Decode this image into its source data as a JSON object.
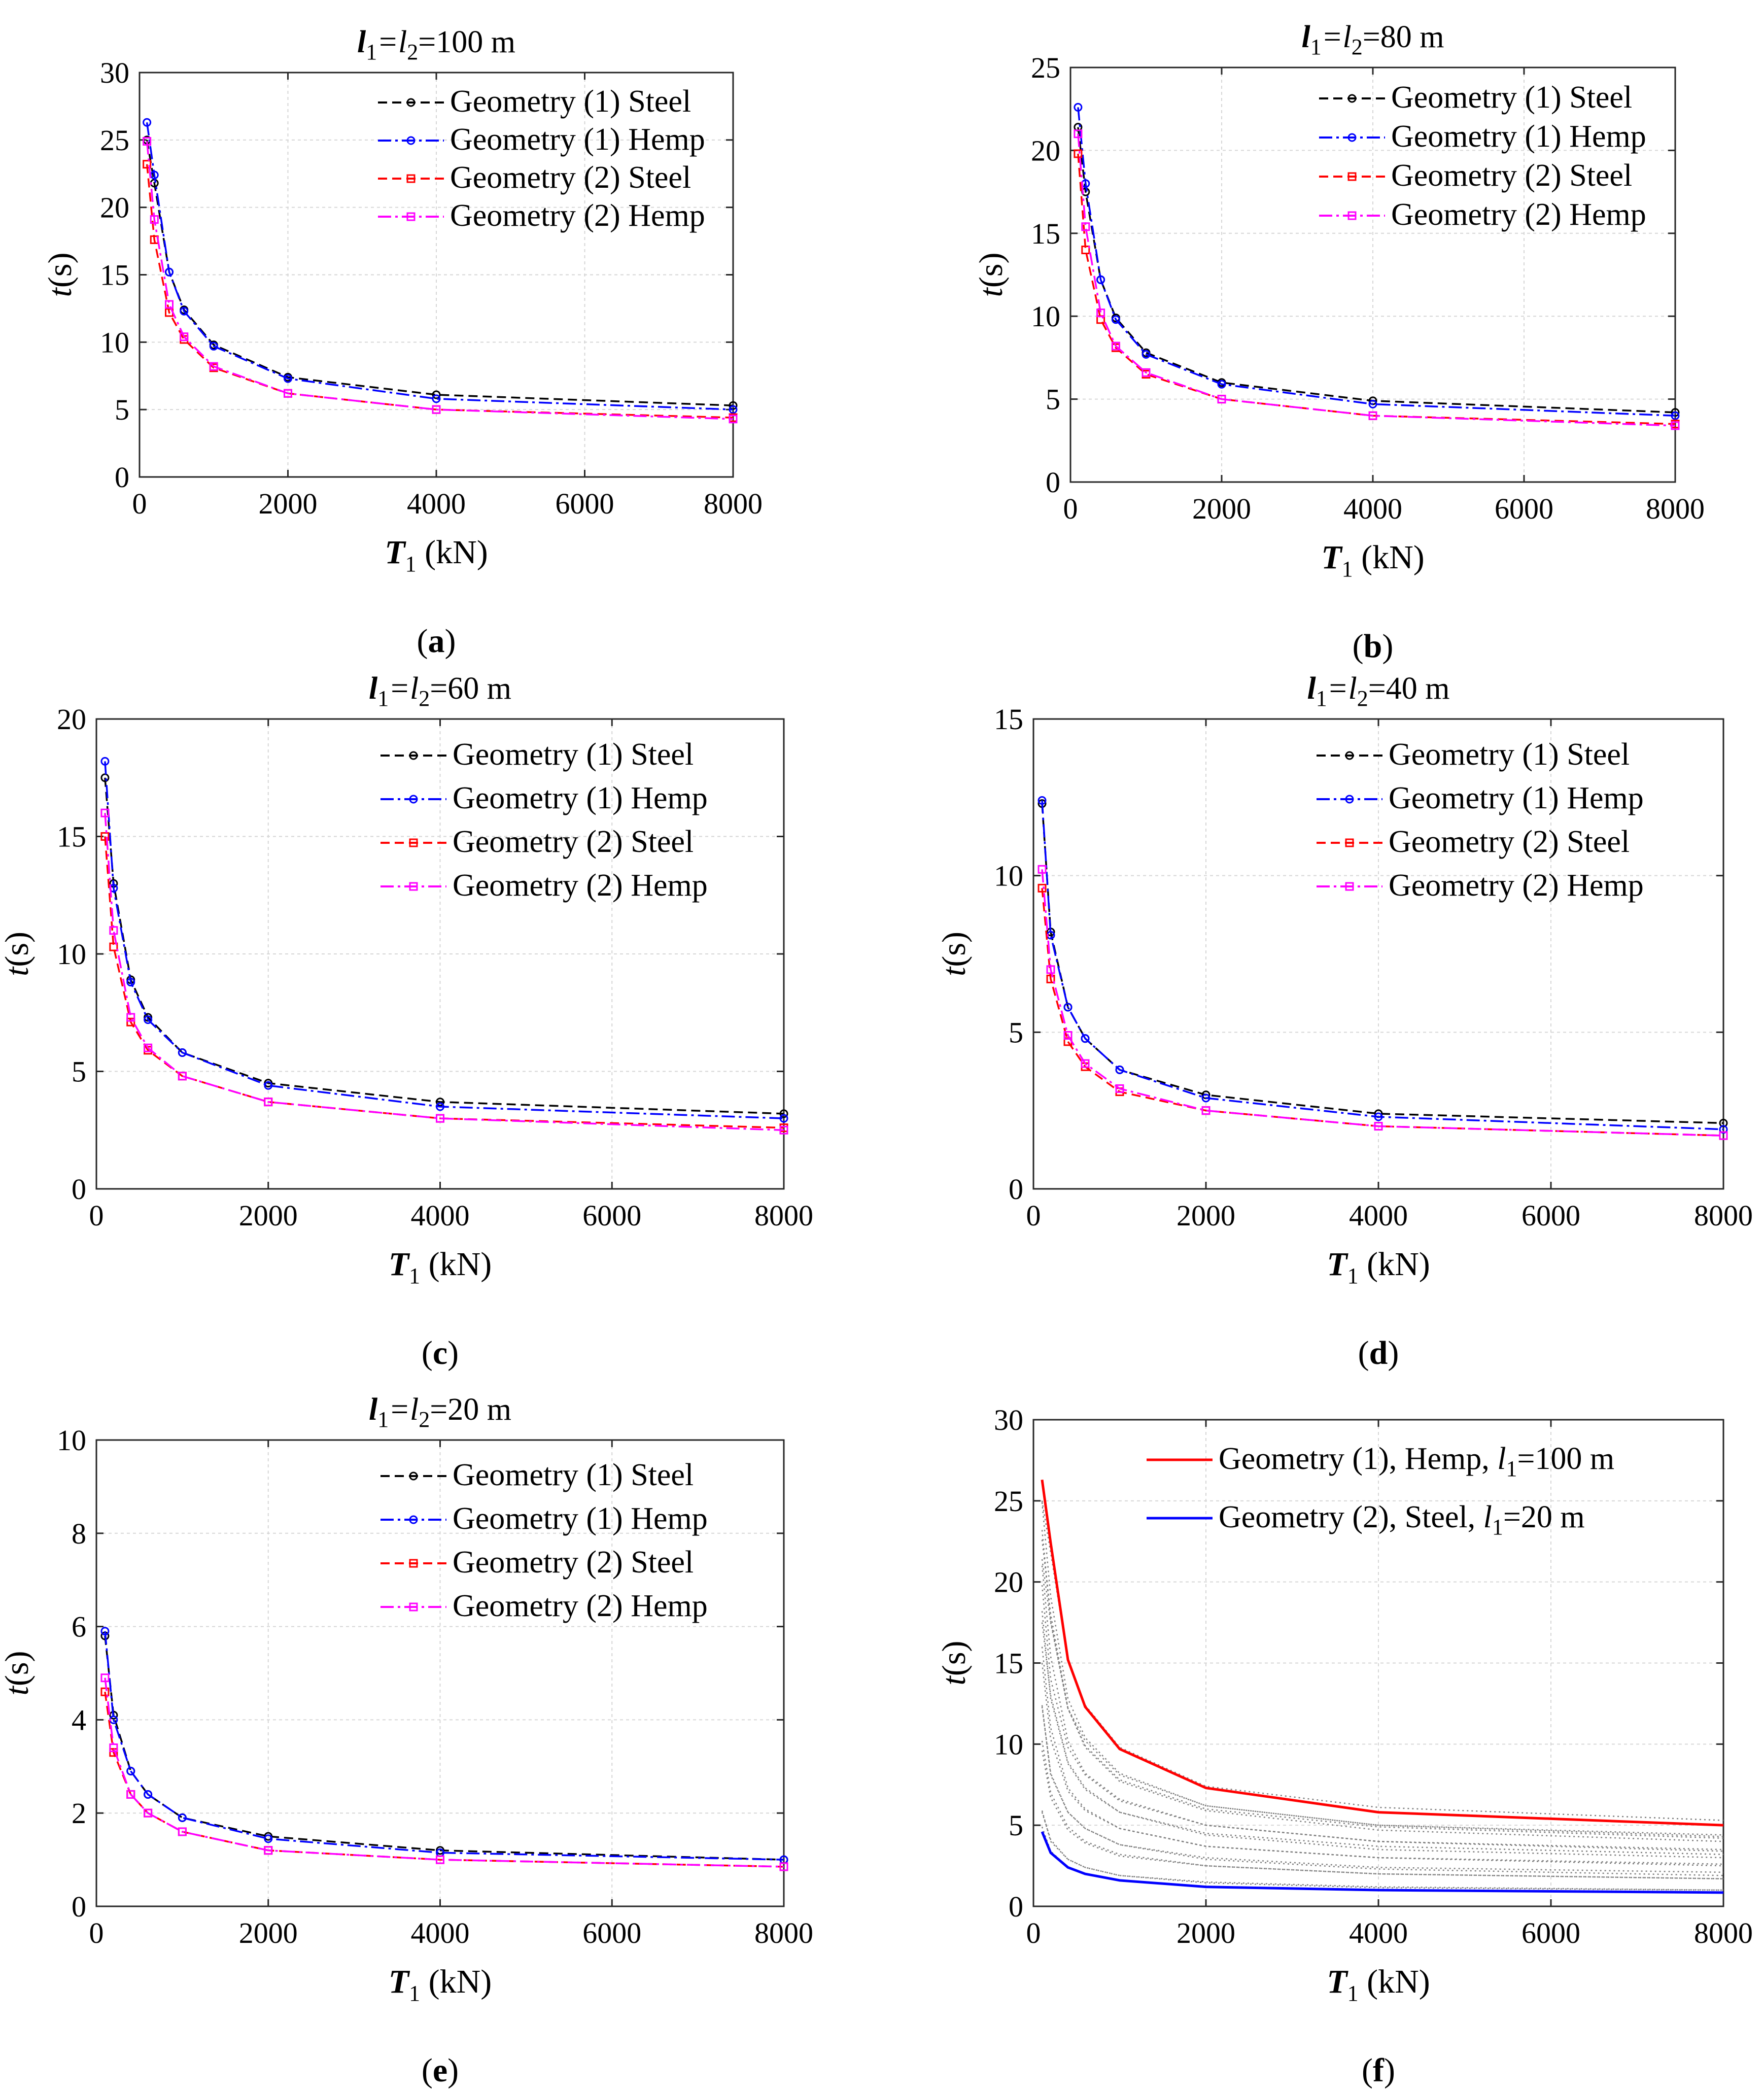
{
  "figure": {
    "x_tick_labels": [
      "0",
      "2000",
      "4000",
      "6000",
      "8000"
    ],
    "xlabel_main": "T",
    "xlabel_sub": "1",
    "xlabel_unit": " (kN)",
    "ylabel_main": "t",
    "ylabel_unit": "(s)"
  },
  "chart_data": [
    {
      "panel": "a",
      "type": "line",
      "title_l": "l",
      "title_s1": "1",
      "title_eq": "=l",
      "title_s2": "2",
      "title_value": "=100 m",
      "caption_open": "(",
      "caption_letter": "a",
      "caption_close": ")",
      "xlim": [
        0,
        8000
      ],
      "ylim": [
        0,
        30
      ],
      "yticks": [
        0,
        5,
        10,
        15,
        20,
        25,
        30
      ],
      "y_tick_labels": [
        "0",
        "5",
        "10",
        "15",
        "20",
        "25",
        "30"
      ],
      "x": [
        100,
        200,
        400,
        600,
        1000,
        2000,
        4000,
        8000
      ],
      "series": [
        {
          "name": "Geometry (1) Steel",
          "color": "#000000",
          "dash": "18 10",
          "marker": "circle",
          "values": [
            25.0,
            21.8,
            15.2,
            12.4,
            9.8,
            7.4,
            6.1,
            5.3
          ]
        },
        {
          "name": "Geometry (1) Hemp",
          "color": "#0000ff",
          "dash": "26 8 5 8",
          "marker": "circle",
          "values": [
            26.3,
            22.4,
            15.2,
            12.3,
            9.7,
            7.3,
            5.8,
            5.0
          ]
        },
        {
          "name": "Geometry (2) Steel",
          "color": "#ff0000",
          "dash": "18 10",
          "marker": "square",
          "values": [
            23.2,
            17.6,
            12.2,
            10.2,
            8.1,
            6.2,
            5.0,
            4.4
          ]
        },
        {
          "name": "Geometry (2) Hemp",
          "color": "#ff00ff",
          "dash": "26 8 5 8",
          "marker": "square",
          "values": [
            24.9,
            19.1,
            12.8,
            10.4,
            8.2,
            6.2,
            5.0,
            4.3
          ]
        }
      ]
    },
    {
      "panel": "b",
      "type": "line",
      "title_l": "l",
      "title_s1": "1",
      "title_eq": "=l",
      "title_s2": "2",
      "title_value": "=80 m",
      "caption_open": "(",
      "caption_letter": "b",
      "caption_close": ")",
      "xlim": [
        0,
        8000
      ],
      "ylim": [
        0,
        25
      ],
      "yticks": [
        0,
        5,
        10,
        15,
        20,
        25
      ],
      "y_tick_labels": [
        "0",
        "5",
        "10",
        "15",
        "20",
        "25"
      ],
      "x": [
        100,
        200,
        400,
        600,
        1000,
        2000,
        4000,
        8000
      ],
      "series": [
        {
          "name": "Geometry (1) Steel",
          "color": "#000000",
          "dash": "18 10",
          "marker": "circle",
          "values": [
            21.4,
            17.5,
            12.2,
            9.9,
            7.8,
            6.0,
            4.9,
            4.2
          ]
        },
        {
          "name": "Geometry (1) Hemp",
          "color": "#0000ff",
          "dash": "26 8 5 8",
          "marker": "circle",
          "values": [
            22.6,
            18.0,
            12.2,
            9.8,
            7.7,
            5.9,
            4.7,
            4.0
          ]
        },
        {
          "name": "Geometry (2) Steel",
          "color": "#ff0000",
          "dash": "18 10",
          "marker": "square",
          "values": [
            19.8,
            14.0,
            9.8,
            8.1,
            6.5,
            5.0,
            4.0,
            3.5
          ]
        },
        {
          "name": "Geometry (2) Hemp",
          "color": "#ff00ff",
          "dash": "26 8 5 8",
          "marker": "square",
          "values": [
            21.0,
            15.4,
            10.2,
            8.2,
            6.6,
            5.0,
            4.0,
            3.4
          ]
        }
      ]
    },
    {
      "panel": "c",
      "type": "line",
      "title_l": "l",
      "title_s1": "1",
      "title_eq": "=l",
      "title_s2": "2",
      "title_value": "=60 m",
      "caption_open": "(",
      "caption_letter": "c",
      "caption_close": ")",
      "xlim": [
        0,
        8000
      ],
      "ylim": [
        0,
        20
      ],
      "yticks": [
        0,
        5,
        10,
        15,
        20
      ],
      "y_tick_labels": [
        "0",
        "5",
        "10",
        "15",
        "20"
      ],
      "x": [
        100,
        200,
        400,
        600,
        1000,
        2000,
        4000,
        8000
      ],
      "series": [
        {
          "name": "Geometry (1) Steel",
          "color": "#000000",
          "dash": "18 10",
          "marker": "circle",
          "values": [
            17.5,
            13.0,
            8.9,
            7.3,
            5.8,
            4.5,
            3.7,
            3.2
          ]
        },
        {
          "name": "Geometry (1) Hemp",
          "color": "#0000ff",
          "dash": "26 8 5 8",
          "marker": "circle",
          "values": [
            18.2,
            12.8,
            8.8,
            7.2,
            5.8,
            4.4,
            3.5,
            3.0
          ]
        },
        {
          "name": "Geometry (2) Steel",
          "color": "#ff0000",
          "dash": "18 10",
          "marker": "square",
          "values": [
            15.0,
            10.3,
            7.1,
            5.9,
            4.8,
            3.7,
            3.0,
            2.6
          ]
        },
        {
          "name": "Geometry (2) Hemp",
          "color": "#ff00ff",
          "dash": "26 8 5 8",
          "marker": "square",
          "values": [
            16.0,
            11.0,
            7.3,
            6.0,
            4.8,
            3.7,
            3.0,
            2.5
          ]
        }
      ]
    },
    {
      "panel": "d",
      "type": "line",
      "title_l": "l",
      "title_s1": "1",
      "title_eq": "=l",
      "title_s2": "2",
      "title_value": "=40 m",
      "caption_open": "(",
      "caption_letter": "d",
      "caption_close": ")",
      "xlim": [
        0,
        8000
      ],
      "ylim": [
        0,
        15
      ],
      "yticks": [
        0,
        5,
        10,
        15
      ],
      "y_tick_labels": [
        "0",
        "5",
        "10",
        "15"
      ],
      "x": [
        100,
        200,
        400,
        600,
        1000,
        2000,
        4000,
        8000
      ],
      "series": [
        {
          "name": "Geometry (1) Steel",
          "color": "#000000",
          "dash": "18 10",
          "marker": "circle",
          "values": [
            12.3,
            8.2,
            5.8,
            4.8,
            3.8,
            3.0,
            2.4,
            2.1
          ]
        },
        {
          "name": "Geometry (1) Hemp",
          "color": "#0000ff",
          "dash": "26 8 5 8",
          "marker": "circle",
          "values": [
            12.4,
            8.1,
            5.8,
            4.8,
            3.8,
            2.9,
            2.3,
            1.9
          ]
        },
        {
          "name": "Geometry (2) Steel",
          "color": "#ff0000",
          "dash": "18 10",
          "marker": "square",
          "values": [
            9.6,
            6.7,
            4.7,
            3.9,
            3.1,
            2.5,
            2.0,
            1.7
          ]
        },
        {
          "name": "Geometry (2) Hemp",
          "color": "#ff00ff",
          "dash": "26 8 5 8",
          "marker": "square",
          "values": [
            10.2,
            7.0,
            4.9,
            4.0,
            3.2,
            2.5,
            2.0,
            1.7
          ]
        }
      ]
    },
    {
      "panel": "e",
      "type": "line",
      "title_l": "l",
      "title_s1": "1",
      "title_eq": "=l",
      "title_s2": "2",
      "title_value": "=20 m",
      "caption_open": "(",
      "caption_letter": "e",
      "caption_close": ")",
      "xlim": [
        0,
        8000
      ],
      "ylim": [
        0,
        10
      ],
      "yticks": [
        0,
        2,
        4,
        6,
        8,
        10
      ],
      "y_tick_labels": [
        "0",
        "2",
        "4",
        "6",
        "8",
        "10"
      ],
      "x": [
        100,
        200,
        400,
        600,
        1000,
        2000,
        4000,
        8000
      ],
      "series": [
        {
          "name": "Geometry (1) Steel",
          "color": "#000000",
          "dash": "18 10",
          "marker": "circle",
          "values": [
            5.8,
            4.1,
            2.9,
            2.4,
            1.9,
            1.5,
            1.2,
            1.0
          ]
        },
        {
          "name": "Geometry (1) Hemp",
          "color": "#0000ff",
          "dash": "26 8 5 8",
          "marker": "circle",
          "values": [
            5.9,
            4.0,
            2.9,
            2.4,
            1.9,
            1.45,
            1.15,
            1.0
          ]
        },
        {
          "name": "Geometry (2) Steel",
          "color": "#ff0000",
          "dash": "18 10",
          "marker": "square",
          "values": [
            4.6,
            3.3,
            2.4,
            2.0,
            1.6,
            1.2,
            1.0,
            0.85
          ]
        },
        {
          "name": "Geometry (2) Hemp",
          "color": "#ff00ff",
          "dash": "26 8 5 8",
          "marker": "square",
          "values": [
            4.9,
            3.4,
            2.4,
            2.0,
            1.6,
            1.2,
            1.0,
            0.85
          ]
        }
      ]
    },
    {
      "panel": "f",
      "type": "line",
      "caption_open": "(",
      "caption_letter": "f",
      "caption_close": ")",
      "xlim": [
        0,
        8000
      ],
      "ylim": [
        0,
        30
      ],
      "yticks": [
        0,
        5,
        10,
        15,
        20,
        25,
        30
      ],
      "y_tick_labels": [
        "0",
        "5",
        "10",
        "15",
        "20",
        "25",
        "30"
      ],
      "x": [
        100,
        200,
        400,
        600,
        1000,
        2000,
        4000,
        8000
      ],
      "series": [
        {
          "name": "Geometry (1), Hemp, l1=100 m",
          "label_main": "Geometry (1), Hemp, ",
          "label_l": "l",
          "label_sub": "1",
          "label_value": "=100 m",
          "color": "#ff0000",
          "values": [
            26.3,
            22.4,
            15.2,
            12.3,
            9.7,
            7.3,
            5.8,
            5.0
          ]
        },
        {
          "name": "Geometry (2), Steel, l1=20 m",
          "label_main": "Geometry (2), Steel, ",
          "label_l": "l",
          "label_sub": "1",
          "label_value": "=20 m",
          "color": "#0000ff",
          "values": [
            4.6,
            3.3,
            2.4,
            2.0,
            1.6,
            1.2,
            1.0,
            0.85
          ]
        }
      ],
      "background_series_color": "#7f7f7f",
      "background_series": [
        [
          25.0,
          21.8,
          15.2,
          12.4,
          9.8,
          7.4,
          6.1,
          5.3
        ],
        [
          23.2,
          17.6,
          12.2,
          10.2,
          8.1,
          6.2,
          5.0,
          4.4
        ],
        [
          24.9,
          19.1,
          12.8,
          10.4,
          8.2,
          6.2,
          5.0,
          4.3
        ],
        [
          21.4,
          17.5,
          12.2,
          9.9,
          7.8,
          6.0,
          4.9,
          4.2
        ],
        [
          22.6,
          18.0,
          12.2,
          9.8,
          7.7,
          5.9,
          4.7,
          4.0
        ],
        [
          19.8,
          14.0,
          9.8,
          8.1,
          6.5,
          5.0,
          4.0,
          3.5
        ],
        [
          21.0,
          15.4,
          10.2,
          8.2,
          6.6,
          5.0,
          4.0,
          3.4
        ],
        [
          17.5,
          13.0,
          8.9,
          7.3,
          5.8,
          4.5,
          3.7,
          3.2
        ],
        [
          18.2,
          12.8,
          8.8,
          7.2,
          5.8,
          4.4,
          3.5,
          3.0
        ],
        [
          15.0,
          10.3,
          7.1,
          5.9,
          4.8,
          3.7,
          3.0,
          2.6
        ],
        [
          16.0,
          11.0,
          7.3,
          6.0,
          4.8,
          3.7,
          3.0,
          2.5
        ],
        [
          12.3,
          8.2,
          5.8,
          4.8,
          3.8,
          3.0,
          2.4,
          2.1
        ],
        [
          12.4,
          8.1,
          5.8,
          4.8,
          3.8,
          2.9,
          2.3,
          1.9
        ],
        [
          9.6,
          6.7,
          4.7,
          3.9,
          3.1,
          2.5,
          2.0,
          1.7
        ],
        [
          10.2,
          7.0,
          4.9,
          4.0,
          3.2,
          2.5,
          2.0,
          1.7
        ],
        [
          5.8,
          4.1,
          2.9,
          2.4,
          1.9,
          1.5,
          1.2,
          1.0
        ],
        [
          5.9,
          4.0,
          2.9,
          2.4,
          1.9,
          1.45,
          1.15,
          1.0
        ],
        [
          4.9,
          3.4,
          2.4,
          2.0,
          1.6,
          1.2,
          1.0,
          0.85
        ]
      ]
    }
  ]
}
